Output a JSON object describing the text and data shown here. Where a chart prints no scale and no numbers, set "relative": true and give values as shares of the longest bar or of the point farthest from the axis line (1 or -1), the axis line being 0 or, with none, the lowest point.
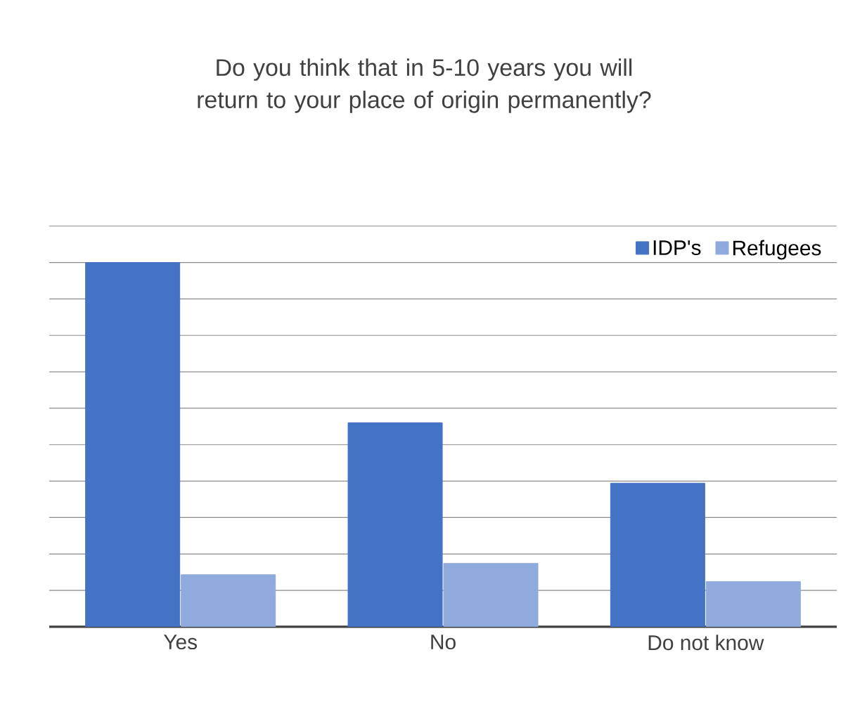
{
  "chart_data": {
    "type": "bar",
    "title": "Do you think that in 5-10 years you will return to your place of origin permanently?",
    "relative": true,
    "categories": [
      "Yes",
      "No",
      "Do not know"
    ],
    "series": [
      {
        "name": "IDP's",
        "color": "#4472c4",
        "values": [
          1,
          0.56,
          0.394
        ]
      },
      {
        "name": "Refugees",
        "color": "#8faadc",
        "values": [
          0.143,
          0.174,
          0.124
        ]
      }
    ],
    "grid": "y",
    "legend": "top right"
  }
}
